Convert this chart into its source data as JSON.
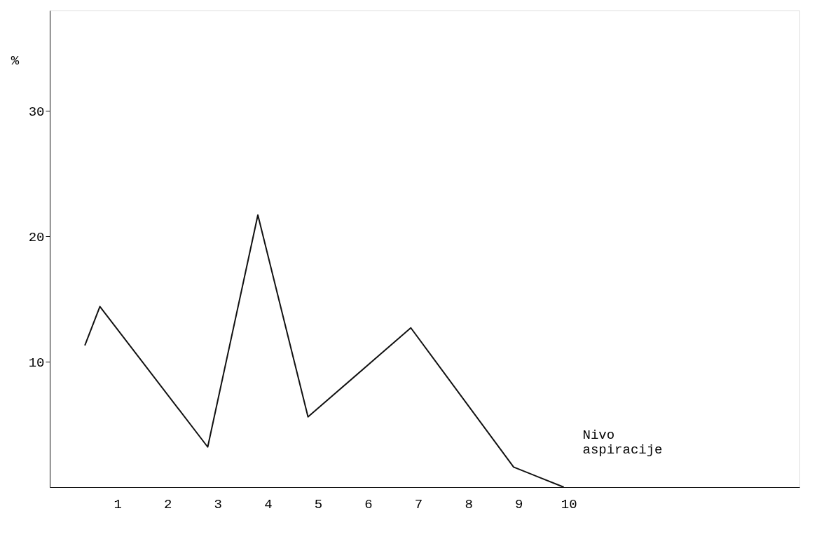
{
  "chart_data": {
    "type": "line",
    "ylabel": "%",
    "xlabel": "Nivo\naspiracije",
    "x": [
      0.35,
      0.65,
      2.8,
      3.8,
      4.8,
      6.85,
      8.9,
      9.9
    ],
    "series": [
      {
        "color": "#111111",
        "values": [
          11.3,
          14.4,
          3.2,
          21.7,
          5.6,
          12.7,
          1.6,
          0
        ]
      }
    ],
    "xlim": [
      -0.35,
      14.6
    ],
    "ylim": [
      0,
      38
    ],
    "xticks": [
      1,
      2,
      3,
      4,
      5,
      6,
      7,
      8,
      9,
      10
    ],
    "yticks": [
      10,
      20,
      30
    ],
    "grid": false,
    "marker": "none",
    "line_style": "solid"
  }
}
